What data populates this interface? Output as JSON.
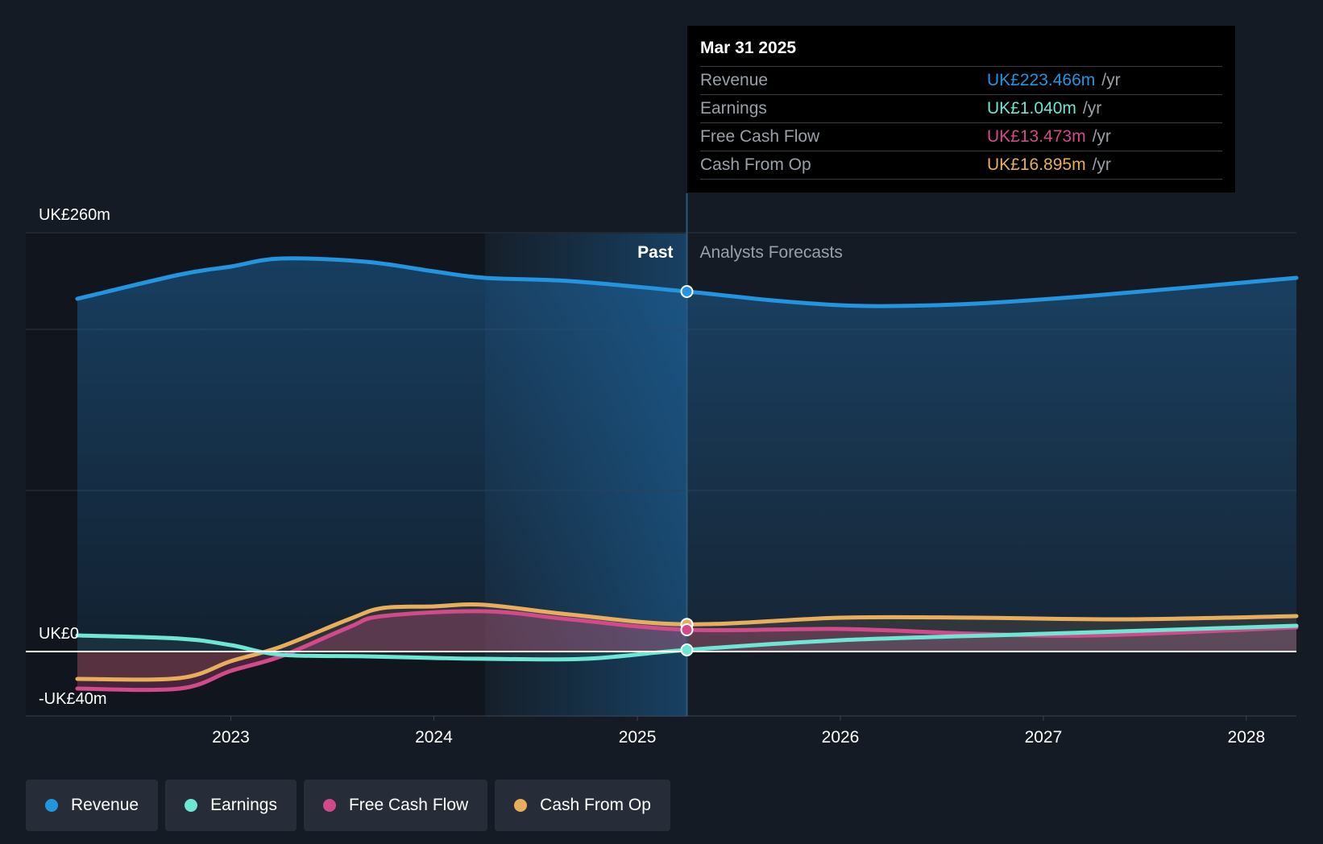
{
  "tooltip": {
    "date": "Mar 31 2025",
    "rows": [
      {
        "label": "Revenue",
        "value": "UK£223.466m",
        "unit": "/yr",
        "color": "#2394df"
      },
      {
        "label": "Earnings",
        "value": "UK£1.040m",
        "unit": "/yr",
        "color": "#6ee6d4"
      },
      {
        "label": "Free Cash Flow",
        "value": "UK£13.473m",
        "unit": "/yr",
        "color": "#d24a8a"
      },
      {
        "label": "Cash From Op",
        "value": "UK£16.895m",
        "unit": "/yr",
        "color": "#e8ae5c"
      }
    ]
  },
  "chart_data": {
    "type": "line",
    "y_tick_labels": [
      "UK£260m",
      "UK£0",
      "-UK£40m"
    ],
    "ylim": [
      -40,
      260
    ],
    "xlim": [
      "2022-03-31",
      "2028-03-31"
    ],
    "x_tick_labels": [
      "2023",
      "2024",
      "2025",
      "2026",
      "2027",
      "2028"
    ],
    "past_label": "Past",
    "forecast_label": "Analysts Forecasts",
    "divider_date": "2025-03-31",
    "grid": true,
    "series": [
      {
        "name": "Revenue",
        "color": "#2394df",
        "points": [
          [
            "2022-03-31",
            219
          ],
          [
            "2022-10-01",
            234
          ],
          [
            "2023-01-01",
            239
          ],
          [
            "2023-04-01",
            244
          ],
          [
            "2023-09-01",
            242
          ],
          [
            "2024-01-01",
            236
          ],
          [
            "2024-04-01",
            232
          ],
          [
            "2024-09-01",
            230
          ],
          [
            "2025-03-31",
            223.5
          ],
          [
            "2025-09-01",
            218
          ],
          [
            "2026-01-01",
            215
          ],
          [
            "2026-04-01",
            214.5
          ],
          [
            "2026-09-01",
            216
          ],
          [
            "2027-04-01",
            221
          ],
          [
            "2028-03-31",
            232
          ]
        ]
      },
      {
        "name": "Earnings",
        "color": "#6ee6d4",
        "points": [
          [
            "2022-03-31",
            10
          ],
          [
            "2022-10-01",
            8
          ],
          [
            "2023-01-01",
            4
          ],
          [
            "2023-04-01",
            -2
          ],
          [
            "2023-09-01",
            -3
          ],
          [
            "2024-01-01",
            -4
          ],
          [
            "2024-04-01",
            -4.5
          ],
          [
            "2024-10-01",
            -4.5
          ],
          [
            "2025-03-31",
            1.0
          ],
          [
            "2026-01-01",
            7
          ],
          [
            "2027-01-01",
            11
          ],
          [
            "2028-03-31",
            16
          ]
        ]
      },
      {
        "name": "Free Cash Flow",
        "color": "#d24a8a",
        "points": [
          [
            "2022-03-31",
            -23
          ],
          [
            "2022-10-01",
            -23
          ],
          [
            "2023-01-01",
            -12
          ],
          [
            "2023-04-01",
            -3
          ],
          [
            "2023-08-01",
            15
          ],
          [
            "2023-10-01",
            22
          ],
          [
            "2024-04-01",
            25
          ],
          [
            "2024-09-01",
            20
          ],
          [
            "2025-03-31",
            13.5
          ],
          [
            "2026-01-01",
            14
          ],
          [
            "2026-09-01",
            11
          ],
          [
            "2027-04-01",
            10
          ],
          [
            "2028-03-31",
            15
          ]
        ]
      },
      {
        "name": "Cash From Op",
        "color": "#e8ae5c",
        "points": [
          [
            "2022-03-31",
            -17
          ],
          [
            "2022-10-01",
            -16.5
          ],
          [
            "2023-01-01",
            -6
          ],
          [
            "2023-04-01",
            3
          ],
          [
            "2023-08-01",
            20
          ],
          [
            "2023-10-01",
            27
          ],
          [
            "2024-01-01",
            28
          ],
          [
            "2024-04-01",
            29
          ],
          [
            "2024-09-01",
            23
          ],
          [
            "2025-03-31",
            16.9
          ],
          [
            "2026-01-01",
            21
          ],
          [
            "2026-09-01",
            21
          ],
          [
            "2027-06-01",
            20
          ],
          [
            "2028-03-31",
            22
          ]
        ]
      }
    ]
  },
  "legend": [
    {
      "label": "Revenue",
      "color": "#2394df"
    },
    {
      "label": "Earnings",
      "color": "#6ee6d4"
    },
    {
      "label": "Free Cash Flow",
      "color": "#d24a8a"
    },
    {
      "label": "Cash From Op",
      "color": "#e8ae5c"
    }
  ]
}
